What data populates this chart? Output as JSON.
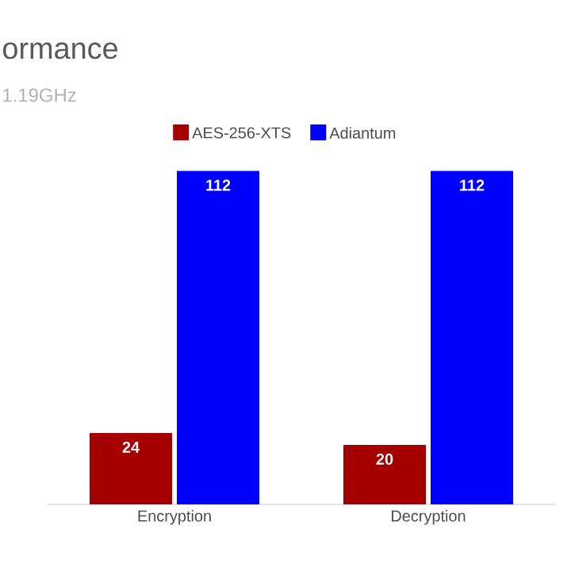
{
  "chart_data": {
    "type": "bar",
    "title": "ormance",
    "subtitle": "1.19GHz",
    "categories": [
      "Encryption",
      "Decryption"
    ],
    "series": [
      {
        "name": "AES-256-XTS",
        "color": "#a50000",
        "values": [
          24,
          20
        ]
      },
      {
        "name": "Adiantum",
        "color": "#0000ff",
        "values": [
          112,
          112
        ]
      }
    ],
    "data_labels": true,
    "legend": "top"
  }
}
